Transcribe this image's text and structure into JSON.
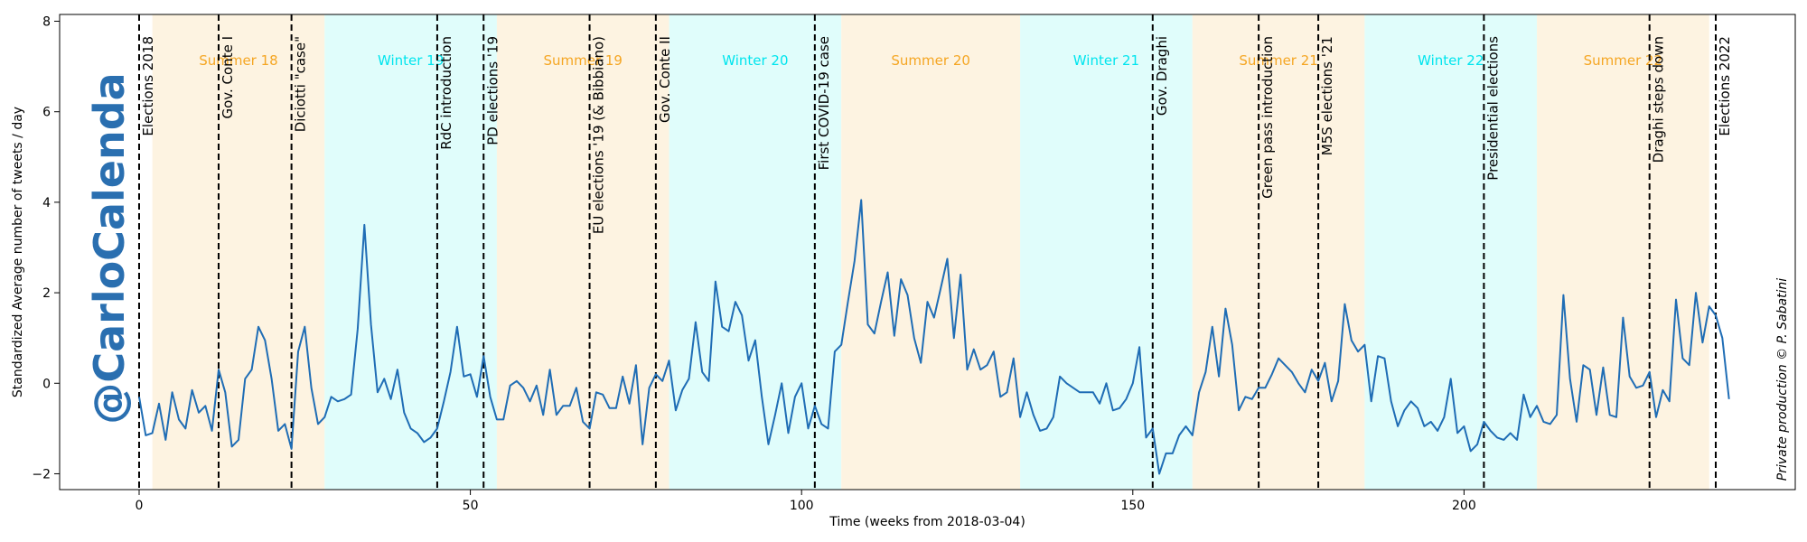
{
  "watermark": "@CarloCalenda",
  "credit": "Private production © P. Sabatini",
  "colors": {
    "line": "#1f6db5",
    "summer_fill": "#fdf3e1",
    "winter_fill": "#e0fdfb",
    "summer_text": "#f5a623",
    "winter_text": "#00e5ee",
    "event_line": "#000000"
  },
  "chart_data": {
    "type": "line",
    "xlabel": "Time (weeks from 2018-03-04)",
    "ylabel": "Standardized Average number of tweets / day",
    "xlim": [
      -12,
      250
    ],
    "ylim": [
      -2.35,
      8.15
    ],
    "xticks": [
      0,
      50,
      100,
      150,
      200
    ],
    "yticks": [
      -2,
      0,
      2,
      4,
      6,
      8
    ],
    "grid": false,
    "seasons": [
      {
        "name": "Summer 18",
        "start": 2,
        "end": 28,
        "kind": "summer"
      },
      {
        "name": "Winter 19",
        "start": 28,
        "end": 54,
        "kind": "winter"
      },
      {
        "name": "Summer 19",
        "start": 54,
        "end": 80,
        "kind": "summer"
      },
      {
        "name": "Winter 20",
        "start": 80,
        "end": 106,
        "kind": "winter"
      },
      {
        "name": "Summer 20",
        "start": 106,
        "end": 133,
        "kind": "summer"
      },
      {
        "name": "Winter 21",
        "start": 133,
        "end": 159,
        "kind": "winter"
      },
      {
        "name": "Summer 21",
        "start": 159,
        "end": 185,
        "kind": "summer"
      },
      {
        "name": "Winter 22",
        "start": 185,
        "end": 211,
        "kind": "winter"
      },
      {
        "name": "Summer 22",
        "start": 211,
        "end": 237,
        "kind": "summer"
      }
    ],
    "events": [
      {
        "label": "Elections 2018",
        "x": 0
      },
      {
        "label": "Gov. Conte I",
        "x": 12
      },
      {
        "label": "Diciotti \"case\"",
        "x": 23
      },
      {
        "label": "RdC introduction",
        "x": 45
      },
      {
        "label": "PD elections '19",
        "x": 52
      },
      {
        "label": "EU elections '19 (& Bibbiano)",
        "x": 68
      },
      {
        "label": "Gov. Conte II",
        "x": 78
      },
      {
        "label": "First COVID-19 case",
        "x": 102
      },
      {
        "label": "Gov. Draghi",
        "x": 153
      },
      {
        "label": "Green pass introduction",
        "x": 169
      },
      {
        "label": "M5S elections '21",
        "x": 178
      },
      {
        "label": "Presidential elections",
        "x": 203
      },
      {
        "label": "Draghi steps down",
        "x": 228
      },
      {
        "label": "Elections 2022",
        "x": 238
      }
    ],
    "series": [
      {
        "x_start": 0,
        "x_step": 1,
        "values": [
          -0.3,
          -1.15,
          -1.1,
          -0.45,
          -1.25,
          -0.2,
          -0.8,
          -1.0,
          -0.15,
          -0.65,
          -0.5,
          -1.05,
          0.3,
          -0.2,
          -1.4,
          -1.25,
          0.1,
          0.3,
          1.25,
          0.95,
          0.1,
          -1.05,
          -0.9,
          -1.45,
          0.7,
          1.25,
          -0.1,
          -0.9,
          -0.75,
          -0.3,
          -0.4,
          -0.35,
          -0.25,
          1.2,
          3.5,
          1.3,
          -0.2,
          0.1,
          -0.35,
          0.3,
          -0.65,
          -1.0,
          -1.1,
          -1.3,
          -1.2,
          -1.0,
          -0.4,
          0.25,
          1.25,
          0.15,
          0.2,
          -0.3,
          0.6,
          -0.3,
          -0.8,
          -0.8,
          -0.05,
          0.05,
          -0.1,
          -0.4,
          -0.05,
          -0.7,
          0.3,
          -0.7,
          -0.5,
          -0.5,
          -0.1,
          -0.85,
          -1.0,
          -0.2,
          -0.25,
          -0.55,
          -0.55,
          0.15,
          -0.45,
          0.4,
          -1.35,
          -0.1,
          0.2,
          0.05,
          0.5,
          -0.6,
          -0.15,
          0.1,
          1.35,
          0.25,
          0.05,
          2.25,
          1.25,
          1.15,
          1.8,
          1.5,
          0.5,
          0.95,
          -0.3,
          -1.35,
          -0.7,
          0.0,
          -1.1,
          -0.3,
          0.0,
          -1.0,
          -0.5,
          -0.9,
          -1.0,
          0.7,
          0.85,
          1.8,
          2.7,
          4.05,
          1.3,
          1.1,
          1.8,
          2.45,
          1.05,
          2.3,
          1.95,
          1.0,
          0.45,
          1.8,
          1.45,
          2.1,
          2.75,
          1.0,
          2.4,
          0.3,
          0.75,
          0.3,
          0.4,
          0.7,
          -0.3,
          -0.2,
          0.55,
          -0.75,
          -0.2,
          -0.7,
          -1.05,
          -1.0,
          -0.75,
          0.15,
          0.0,
          -0.1,
          -0.2,
          -0.2,
          -0.2,
          -0.45,
          0.0,
          -0.6,
          -0.55,
          -0.35,
          0.0,
          0.8,
          -1.2,
          -1.0,
          -2.0,
          -1.55,
          -1.55,
          -1.15,
          -0.95,
          -1.15,
          -0.2,
          0.25,
          1.25,
          0.15,
          1.65,
          0.85,
          -0.6,
          -0.3,
          -0.35,
          -0.1,
          -0.1,
          0.2,
          0.55,
          0.4,
          0.25,
          0.0,
          -0.2,
          0.3,
          0.05,
          0.45,
          -0.4,
          0.05,
          1.75,
          0.95,
          0.7,
          0.85,
          -0.4,
          0.6,
          0.55,
          -0.4,
          -0.95,
          -0.6,
          -0.4,
          -0.55,
          -0.95,
          -0.85,
          -1.05,
          -0.75,
          0.1,
          -1.1,
          -0.95,
          -1.5,
          -1.35,
          -0.85,
          -1.05,
          -1.2,
          -1.25,
          -1.1,
          -1.25,
          -0.25,
          -0.75,
          -0.5,
          -0.85,
          -0.9,
          -0.7,
          1.95,
          0.1,
          -0.85,
          0.4,
          0.3,
          -0.7,
          0.35,
          -0.7,
          -0.75,
          1.45,
          0.15,
          -0.1,
          -0.05,
          0.25,
          -0.75,
          -0.15,
          -0.4,
          1.85,
          0.55,
          0.4,
          2.0,
          0.9,
          1.7,
          1.5,
          1.0,
          -0.35
        ]
      }
    ]
  }
}
